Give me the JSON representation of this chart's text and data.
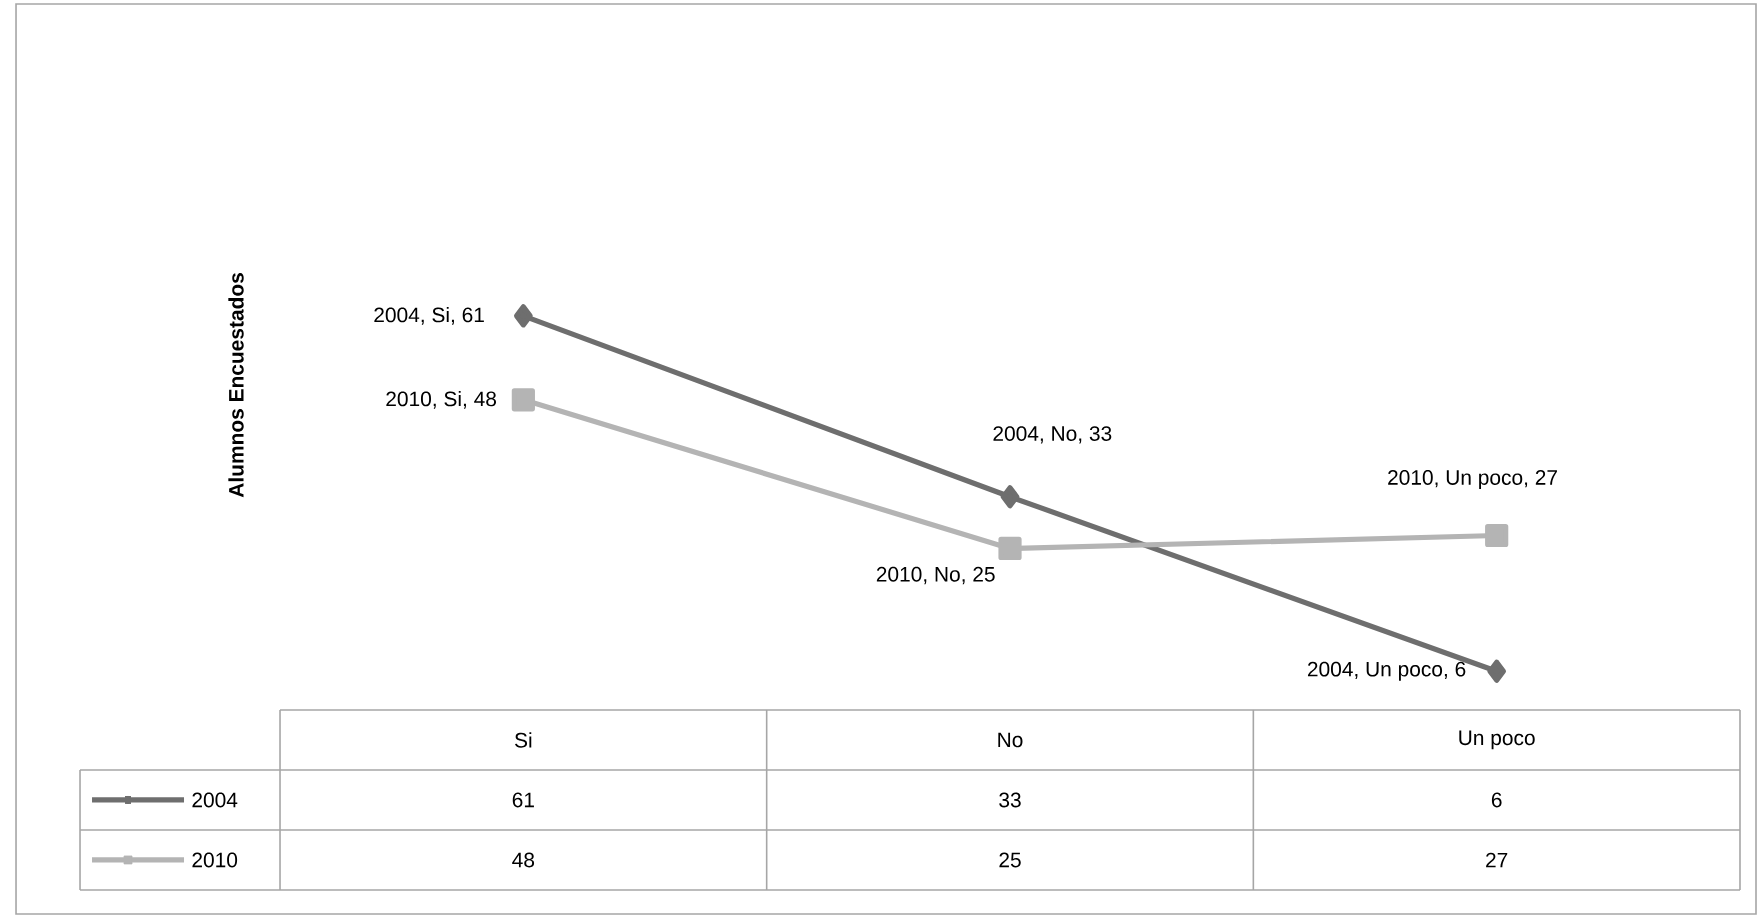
{
  "chart_data": {
    "type": "line",
    "ylabel": "Alumnos Encuestados",
    "categories": [
      "Si",
      "No",
      "Un poco"
    ],
    "series": [
      {
        "name": "2004",
        "color": "#6e6e6e",
        "marker": "diamond",
        "values": [
          61,
          33,
          6
        ]
      },
      {
        "name": "2010",
        "color": "#b4b4b4",
        "marker": "square",
        "values": [
          48,
          25,
          27
        ]
      }
    ],
    "annotations": [
      {
        "text": "2004, Si, 61",
        "x": "Si",
        "y": 61
      },
      {
        "text": "2010, Si, 48",
        "x": "Si",
        "y": 48
      },
      {
        "text": "2004, No, 33",
        "x": "No",
        "y": 33
      },
      {
        "text": "2010, No, 25",
        "x": "No",
        "y": 25
      },
      {
        "text": "2010, Un poco, 27",
        "x": "Un poco",
        "y": 27
      },
      {
        "text": "2004, Un poco, 6",
        "x": "Un poco",
        "y": 6
      }
    ],
    "data_labels": true,
    "legend": "bottom"
  }
}
